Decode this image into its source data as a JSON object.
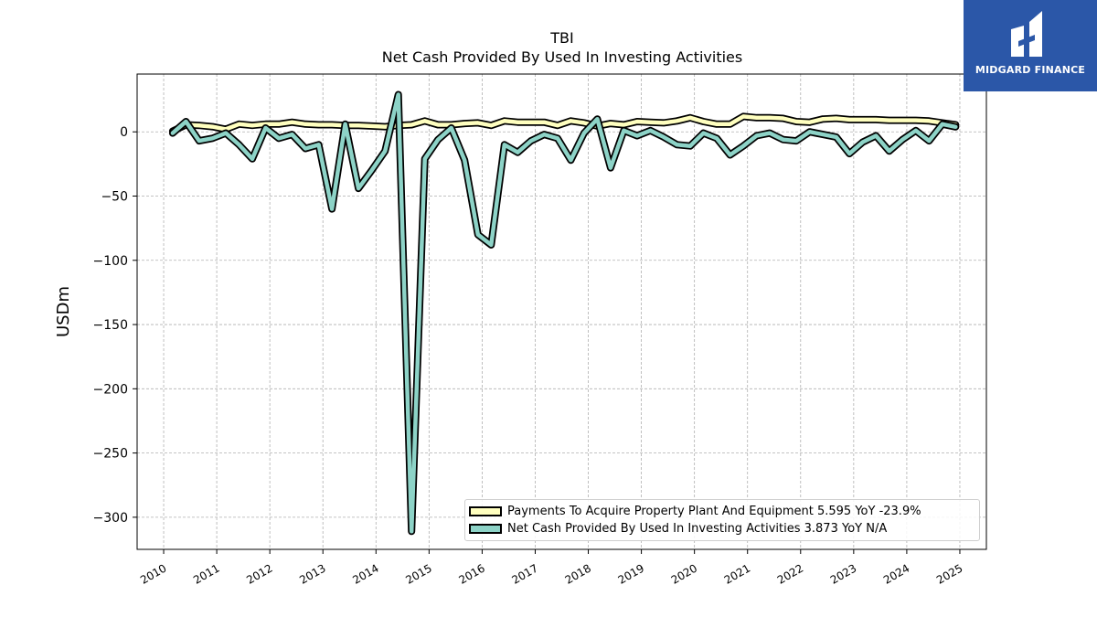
{
  "chart_data": {
    "type": "line",
    "title": "TBI",
    "subtitle": "Net Cash Provided By Used In Investing Activities",
    "ylabel": "USDm",
    "xlabel": "",
    "xlim": [
      2009.5,
      2025.5
    ],
    "ylim": [
      -325,
      45
    ],
    "xticks": [
      "2010",
      "2011",
      "2012",
      "2013",
      "2014",
      "2015",
      "2016",
      "2017",
      "2018",
      "2019",
      "2020",
      "2021",
      "2022",
      "2023",
      "2024",
      "2025"
    ],
    "yticks": [
      0,
      -50,
      -100,
      -150,
      -200,
      -250,
      -300
    ],
    "ytick_labels": [
      "0",
      "−50",
      "−100",
      "−150",
      "−200",
      "−250",
      "−300"
    ],
    "grid": true,
    "legend_position": "lower-right",
    "series": [
      {
        "name": "Payments To Acquire Property Plant And Equipment",
        "legend_label": "Payments To Acquire Property Plant And Equipment  5.595 YoY -23.9%",
        "color": "#ffffbf",
        "values": [
          [
            2010.17,
            0.5
          ],
          [
            2010.42,
            5.5
          ],
          [
            2010.67,
            5.0
          ],
          [
            2010.92,
            4.0
          ],
          [
            2011.17,
            2.0
          ],
          [
            2011.42,
            6.0
          ],
          [
            2011.67,
            5.0
          ],
          [
            2011.92,
            6.0
          ],
          [
            2012.17,
            6.0
          ],
          [
            2012.42,
            7.5
          ],
          [
            2012.67,
            6.0
          ],
          [
            2012.92,
            5.5
          ],
          [
            2013.17,
            5.5
          ],
          [
            2013.42,
            5.0
          ],
          [
            2013.67,
            5.0
          ],
          [
            2013.92,
            4.5
          ],
          [
            2014.17,
            4.0
          ],
          [
            2014.42,
            5.0
          ],
          [
            2014.67,
            5.5
          ],
          [
            2014.92,
            8.5
          ],
          [
            2015.17,
            5.5
          ],
          [
            2015.42,
            5.5
          ],
          [
            2015.67,
            6.5
          ],
          [
            2015.92,
            7.0
          ],
          [
            2016.17,
            5.0
          ],
          [
            2016.42,
            8.5
          ],
          [
            2016.67,
            7.5
          ],
          [
            2016.92,
            7.5
          ],
          [
            2017.17,
            7.5
          ],
          [
            2017.42,
            5.0
          ],
          [
            2017.67,
            8.5
          ],
          [
            2017.92,
            7.0
          ],
          [
            2018.17,
            4.5
          ],
          [
            2018.42,
            6.5
          ],
          [
            2018.67,
            5.5
          ],
          [
            2018.92,
            8.0
          ],
          [
            2019.17,
            7.5
          ],
          [
            2019.42,
            7.0
          ],
          [
            2019.67,
            8.5
          ],
          [
            2019.92,
            11.0
          ],
          [
            2020.17,
            8.0
          ],
          [
            2020.42,
            6.0
          ],
          [
            2020.67,
            6.0
          ],
          [
            2020.92,
            12.0
          ],
          [
            2021.17,
            11.0
          ],
          [
            2021.42,
            11.0
          ],
          [
            2021.67,
            10.5
          ],
          [
            2021.92,
            8.0
          ],
          [
            2022.17,
            7.5
          ],
          [
            2022.42,
            10.0
          ],
          [
            2022.67,
            10.5
          ],
          [
            2022.92,
            9.5
          ],
          [
            2023.17,
            9.5
          ],
          [
            2023.42,
            9.5
          ],
          [
            2023.67,
            9.0
          ],
          [
            2023.92,
            9.0
          ],
          [
            2024.17,
            9.0
          ],
          [
            2024.42,
            8.5
          ],
          [
            2024.67,
            7.0
          ],
          [
            2024.92,
            5.595
          ]
        ]
      },
      {
        "name": "Net Cash Provided By Used In Investing Activities",
        "legend_label": "Net Cash Provided By Used In Investing Activities  3.873 YoY N/A",
        "color": "#8dd3c7",
        "values": [
          [
            2010.17,
            -1.0
          ],
          [
            2010.42,
            8.0
          ],
          [
            2010.67,
            -7.0
          ],
          [
            2010.92,
            -5.0
          ],
          [
            2011.17,
            -1.0
          ],
          [
            2011.42,
            -10.0
          ],
          [
            2011.67,
            -21.0
          ],
          [
            2011.92,
            3.0
          ],
          [
            2012.17,
            -5.0
          ],
          [
            2012.42,
            -2.0
          ],
          [
            2012.67,
            -13.0
          ],
          [
            2012.92,
            -10.0
          ],
          [
            2013.17,
            -60.0
          ],
          [
            2013.42,
            6.0
          ],
          [
            2013.67,
            -44.0
          ],
          [
            2013.92,
            -30.0
          ],
          [
            2014.17,
            -15.0
          ],
          [
            2014.42,
            29.0
          ],
          [
            2014.67,
            -311.0
          ],
          [
            2014.92,
            -21.0
          ],
          [
            2015.17,
            -6.0
          ],
          [
            2015.42,
            3.0
          ],
          [
            2015.67,
            -22.0
          ],
          [
            2015.92,
            -80.0
          ],
          [
            2016.17,
            -88.0
          ],
          [
            2016.42,
            -10.0
          ],
          [
            2016.67,
            -16.0
          ],
          [
            2016.92,
            -7.0
          ],
          [
            2017.17,
            -2.0
          ],
          [
            2017.42,
            -5.0
          ],
          [
            2017.67,
            -22.0
          ],
          [
            2017.92,
            -1.0
          ],
          [
            2018.17,
            10.0
          ],
          [
            2018.42,
            -28.0
          ],
          [
            2018.67,
            1.0
          ],
          [
            2018.92,
            -3.0
          ],
          [
            2019.17,
            1.0
          ],
          [
            2019.42,
            -4.0
          ],
          [
            2019.67,
            -10.0
          ],
          [
            2019.92,
            -11.0
          ],
          [
            2020.17,
            -1.0
          ],
          [
            2020.42,
            -5.0
          ],
          [
            2020.67,
            -18.0
          ],
          [
            2020.92,
            -11.0
          ],
          [
            2021.17,
            -3.0
          ],
          [
            2021.42,
            -1.0
          ],
          [
            2021.67,
            -6.0
          ],
          [
            2021.92,
            -7.0
          ],
          [
            2022.17,
            0.0
          ],
          [
            2022.42,
            -2.0
          ],
          [
            2022.67,
            -4.0
          ],
          [
            2022.92,
            -17.0
          ],
          [
            2023.17,
            -8.0
          ],
          [
            2023.42,
            -3.0
          ],
          [
            2023.67,
            -15.0
          ],
          [
            2023.92,
            -6.0
          ],
          [
            2024.17,
            1.0
          ],
          [
            2024.42,
            -7.0
          ],
          [
            2024.67,
            6.0
          ],
          [
            2024.92,
            3.873
          ]
        ]
      }
    ]
  },
  "logo": {
    "text": "MIDGARD FINANCE"
  }
}
